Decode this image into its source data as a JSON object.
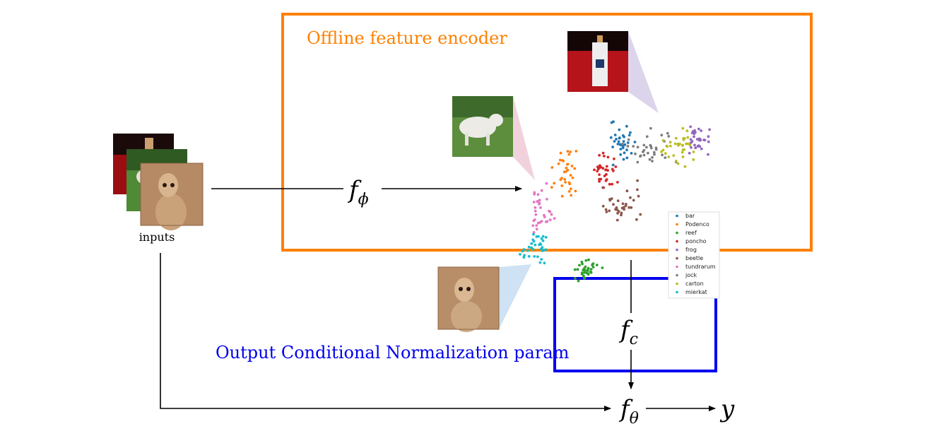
{
  "encoder_box": {
    "label": "Offline feature encoder",
    "color": "#ff8000"
  },
  "norm_box": {
    "label": "Output Conditional Normalization param",
    "color": "#0000ee"
  },
  "inputs_label": "inputs",
  "functions": {
    "encoder": {
      "base": "f",
      "sub": "ϕ"
    },
    "conditional": {
      "base": "f",
      "sub": "c"
    },
    "main": {
      "base": "f",
      "sub": "θ"
    },
    "output": "y"
  },
  "legend": [
    {
      "label": "bar",
      "color": "#1f77b4"
    },
    {
      "label": "Podenco",
      "color": "#ff7f0e"
    },
    {
      "label": "reef",
      "color": "#2ca02c"
    },
    {
      "label": "poncho",
      "color": "#d62728"
    },
    {
      "label": "frog",
      "color": "#9467bd"
    },
    {
      "label": "beetle",
      "color": "#8c564b"
    },
    {
      "label": "tundrarum",
      "color": "#e377c2"
    },
    {
      "label": "jock",
      "color": "#7f7f7f"
    },
    {
      "label": "carton",
      "color": "#bcbd22"
    },
    {
      "label": "mierkat",
      "color": "#17becf"
    }
  ],
  "thumbnails": [
    {
      "subject": "white-wolf-photo"
    },
    {
      "subject": "bottle-on-red-photo"
    },
    {
      "subject": "meerkat-photo"
    }
  ]
}
